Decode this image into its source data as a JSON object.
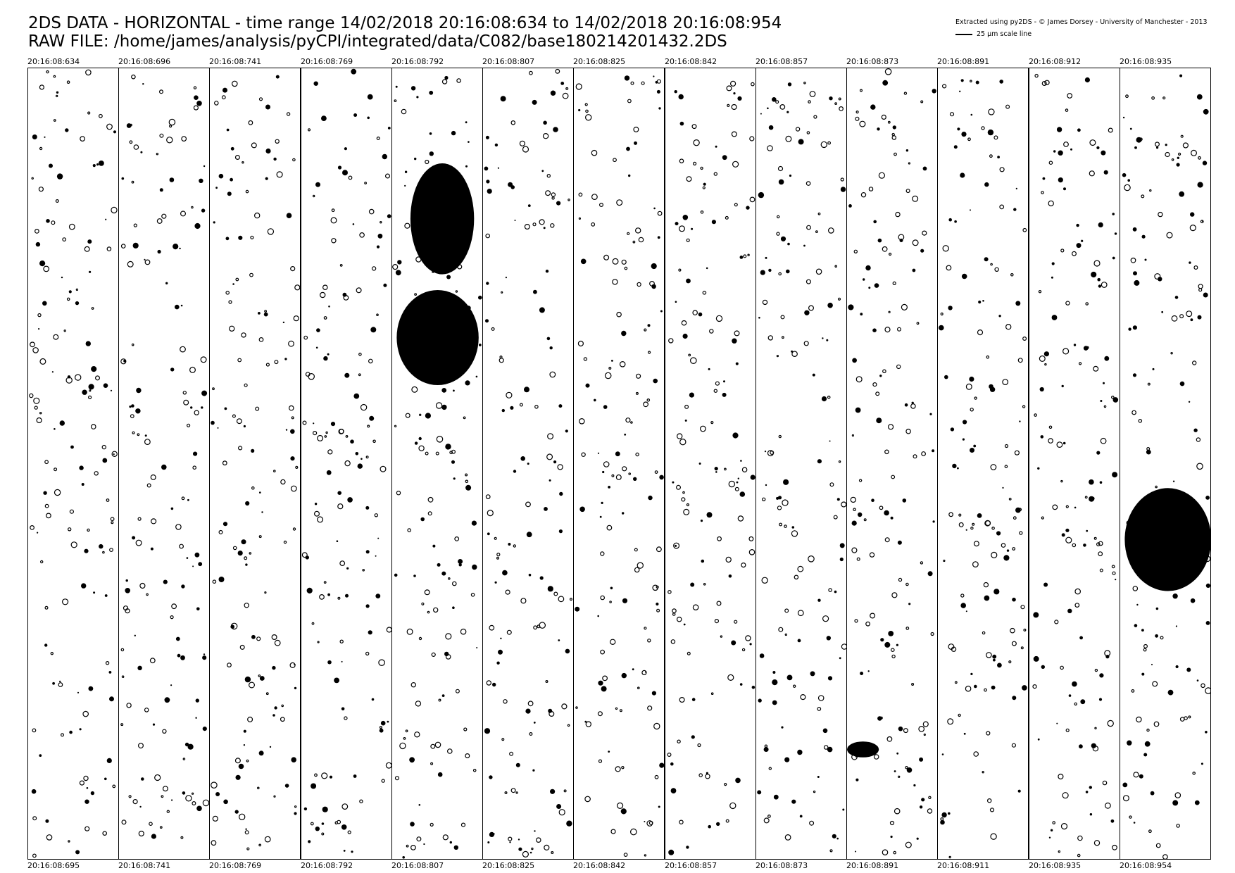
{
  "header": {
    "title_line1": "2DS DATA - HORIZONTAL - time range 14/02/2018 20:16:08:634 to 14/02/2018 20:16:08:954",
    "title_line2": "RAW FILE: /home/james/analysis/pyCPI/integrated/data/C082/base180214201432.2DS",
    "credit": "Extracted using py2DS - © James Dorsey - University of Manchester - 2013",
    "scale_label": "25 µm scale line"
  },
  "strips": [
    {
      "start": "20:16:08:634",
      "end": "20:16:08:695"
    },
    {
      "start": "20:16:08:696",
      "end": "20:16:08:741"
    },
    {
      "start": "20:16:08:741",
      "end": "20:16:08:769"
    },
    {
      "start": "20:16:08:769",
      "end": "20:16:08:792"
    },
    {
      "start": "20:16:08:792",
      "end": "20:16:08:807"
    },
    {
      "start": "20:16:08:807",
      "end": "20:16:08:825"
    },
    {
      "start": "20:16:08:825",
      "end": "20:16:08:842"
    },
    {
      "start": "20:16:08:842",
      "end": "20:16:08:857"
    },
    {
      "start": "20:16:08:857",
      "end": "20:16:08:873"
    },
    {
      "start": "20:16:08:873",
      "end": "20:16:08:891"
    },
    {
      "start": "20:16:08:891",
      "end": "20:16:08:911"
    },
    {
      "start": "20:16:08:912",
      "end": "20:16:08:935"
    },
    {
      "start": "20:16:08:935",
      "end": "20:16:08:954"
    }
  ]
}
